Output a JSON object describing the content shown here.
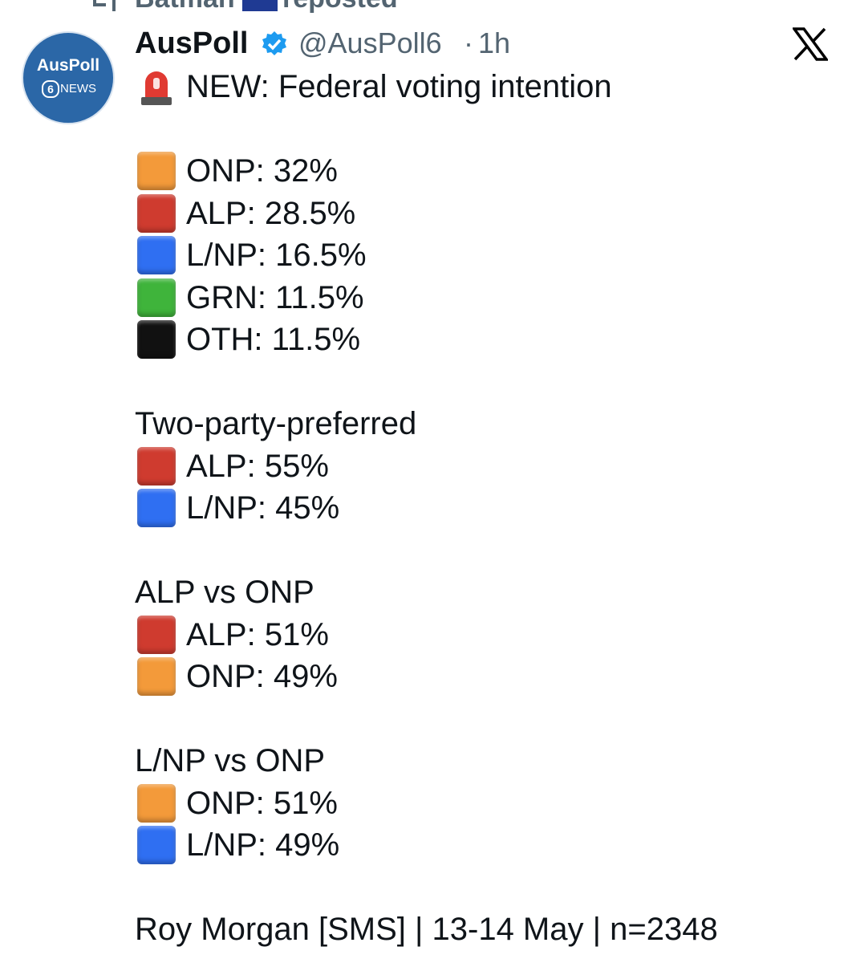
{
  "repost": {
    "user": "Batman",
    "label": "reposted"
  },
  "author": {
    "name": "AusPoll",
    "handle": "@AusPoll6",
    "separator": "·",
    "time": "1h",
    "avatar": {
      "brand": "AusPoll",
      "number": "6",
      "word": "NEWS"
    }
  },
  "tweet": {
    "headline": "NEW: Federal voting intention",
    "primary": [
      {
        "color": "#f39a3a",
        "text": "ONP: 32%"
      },
      {
        "color": "#cf3b2f",
        "text": "ALP: 28.5%"
      },
      {
        "color": "#2f6ff2",
        "text": "L/NP: 16.5%"
      },
      {
        "color": "#3fb43b",
        "text": "GRN: 11.5%"
      },
      {
        "color": "#111111",
        "text": "OTH: 11.5%"
      }
    ],
    "comparisons": [
      {
        "title": "Two-party-preferred",
        "lines": [
          {
            "color": "#cf3b2f",
            "text": "ALP: 55%"
          },
          {
            "color": "#2f6ff2",
            "text": "L/NP: 45%"
          }
        ]
      },
      {
        "title": "ALP vs ONP",
        "lines": [
          {
            "color": "#cf3b2f",
            "text": "ALP: 51%"
          },
          {
            "color": "#f39a3a",
            "text": "ONP: 49%"
          }
        ]
      },
      {
        "title": "L/NP vs ONP",
        "lines": [
          {
            "color": "#f39a3a",
            "text": "ONP: 51%"
          },
          {
            "color": "#2f6ff2",
            "text": "L/NP: 49%"
          }
        ]
      }
    ],
    "source": "Roy Morgan [SMS] | 13-14 May | n=2348"
  }
}
